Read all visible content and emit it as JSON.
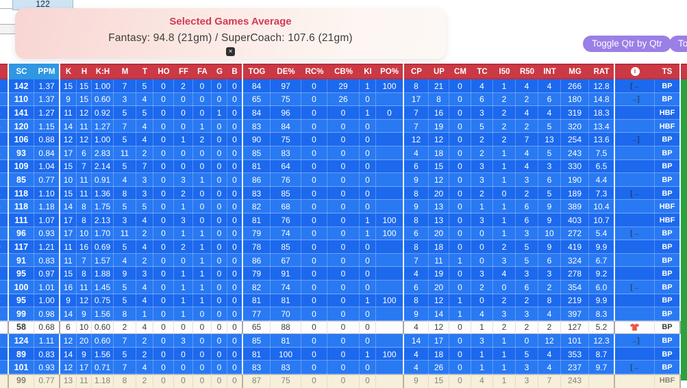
{
  "top": {
    "cell_value": "122",
    "toggle_qtr_label": "Toggle Qtr by Qtr",
    "toggle_second_label": "Togg"
  },
  "tooltip": {
    "title": "Selected Games Average",
    "body": "Fantasy: 94.8 (21gm) / SuperCoach: 107.6 (21gm)",
    "close_label": "×"
  },
  "colors": {
    "header_red": "#cb3944",
    "header_highlight_blue": "#2f97e3",
    "row_blue_dark": "#1c69ee",
    "row_blue_light": "#2979f3",
    "selected_row_white": "#fdfdfd",
    "highlight_row_cream": "#f7efd9",
    "green_strip": "#2aa33c",
    "button_purple": "#9a7fe6",
    "tooltip_title_red": "#d23b56"
  },
  "icons": {
    "sub_off": "[→",
    "sub_on": "→]",
    "info": "i"
  },
  "table": {
    "columns": [
      {
        "key": "edge",
        "label": "",
        "gend": true
      },
      {
        "key": "sc",
        "label": "SC",
        "hl": true
      },
      {
        "key": "ppm",
        "label": "PPM",
        "hl": true,
        "gend": true
      },
      {
        "key": "k",
        "label": "K"
      },
      {
        "key": "h",
        "label": "H"
      },
      {
        "key": "kh",
        "label": "K:H"
      },
      {
        "key": "m",
        "label": "M"
      },
      {
        "key": "t",
        "label": "T"
      },
      {
        "key": "ho",
        "label": "HO"
      },
      {
        "key": "ff",
        "label": "FF"
      },
      {
        "key": "fa",
        "label": "FA"
      },
      {
        "key": "g",
        "label": "G"
      },
      {
        "key": "b",
        "label": "B",
        "gend": true
      },
      {
        "key": "tog",
        "label": "TOG"
      },
      {
        "key": "de",
        "label": "DE%"
      },
      {
        "key": "rc",
        "label": "RC%"
      },
      {
        "key": "cb",
        "label": "CB%"
      },
      {
        "key": "ki",
        "label": "KI"
      },
      {
        "key": "po",
        "label": "PO%",
        "gend": true
      },
      {
        "key": "cp",
        "label": "CP"
      },
      {
        "key": "up",
        "label": "UP"
      },
      {
        "key": "cm",
        "label": "CM"
      },
      {
        "key": "tc",
        "label": "TC"
      },
      {
        "key": "i50",
        "label": "I50"
      },
      {
        "key": "r50",
        "label": "R50"
      },
      {
        "key": "int",
        "label": "INT"
      },
      {
        "key": "mg",
        "label": "MG"
      },
      {
        "key": "rat",
        "label": "RAT",
        "gend": true
      },
      {
        "key": "status",
        "label": "",
        "icon": "info-icon"
      },
      {
        "key": "ts",
        "label": "TS",
        "gend": true
      }
    ],
    "rows": [
      {
        "edge": "",
        "cells": [
          "142",
          "1.37",
          "15",
          "15",
          "1.00",
          "7",
          "5",
          "0",
          "2",
          "0",
          "0",
          "0",
          "84",
          "97",
          "0",
          "29",
          "1",
          "100",
          "8",
          "21",
          "0",
          "4",
          "1",
          "4",
          "4",
          "266",
          "12.8"
        ],
        "icon": "sub-off",
        "ts": "BP",
        "variant": ""
      },
      {
        "edge": "",
        "cells": [
          "110",
          "1.37",
          "9",
          "15",
          "0.60",
          "3",
          "4",
          "0",
          "0",
          "0",
          "0",
          "0",
          "65",
          "75",
          "0",
          "26",
          "0",
          "",
          "17",
          "8",
          "0",
          "6",
          "2",
          "2",
          "6",
          "180",
          "14.8"
        ],
        "icon": "sub-on",
        "ts": "BP",
        "variant": ""
      },
      {
        "edge": "3",
        "cells": [
          "141",
          "1.27",
          "11",
          "12",
          "0.92",
          "5",
          "5",
          "0",
          "0",
          "0",
          "1",
          "0",
          "84",
          "96",
          "0",
          "0",
          "1",
          "0",
          "7",
          "16",
          "0",
          "3",
          "2",
          "4",
          "4",
          "319",
          "18.3"
        ],
        "icon": "",
        "ts": "HBF",
        "variant": ""
      },
      {
        "edge": "4",
        "cells": [
          "120",
          "1.15",
          "14",
          "11",
          "1.27",
          "7",
          "4",
          "0",
          "0",
          "1",
          "0",
          "0",
          "83",
          "84",
          "0",
          "0",
          "0",
          "",
          "7",
          "19",
          "0",
          "5",
          "2",
          "2",
          "5",
          "320",
          "13.4"
        ],
        "icon": "",
        "ts": "HBF",
        "variant": ""
      },
      {
        "edge": "",
        "cells": [
          "106",
          "0.88",
          "12",
          "12",
          "1.00",
          "5",
          "4",
          "0",
          "1",
          "2",
          "0",
          "0",
          "90",
          "75",
          "0",
          "0",
          "0",
          "",
          "12",
          "12",
          "0",
          "2",
          "2",
          "7",
          "13",
          "254",
          "13.6"
        ],
        "icon": "sub-on",
        "ts": "BP",
        "variant": ""
      },
      {
        "edge": "4",
        "cells": [
          "93",
          "0.84",
          "17",
          "6",
          "2.83",
          "11",
          "2",
          "0",
          "0",
          "0",
          "0",
          "0",
          "85",
          "83",
          "0",
          "0",
          "0",
          "",
          "4",
          "18",
          "0",
          "2",
          "1",
          "4",
          "5",
          "243",
          "7.5"
        ],
        "icon": "",
        "ts": "BP",
        "variant": ""
      },
      {
        "edge": "7",
        "cells": [
          "109",
          "1.04",
          "15",
          "7",
          "2.14",
          "5",
          "7",
          "0",
          "0",
          "0",
          "0",
          "0",
          "81",
          "64",
          "0",
          "0",
          "0",
          "",
          "6",
          "15",
          "0",
          "3",
          "1",
          "4",
          "3",
          "330",
          "6.5"
        ],
        "icon": "",
        "ts": "BP",
        "variant": ""
      },
      {
        "edge": "9",
        "cells": [
          "85",
          "0.77",
          "10",
          "11",
          "0.91",
          "4",
          "3",
          "0",
          "3",
          "1",
          "0",
          "0",
          "86",
          "76",
          "0",
          "0",
          "0",
          "",
          "9",
          "12",
          "0",
          "3",
          "1",
          "3",
          "6",
          "190",
          "4.4"
        ],
        "icon": "",
        "ts": "BP",
        "variant": ""
      },
      {
        "edge": "3",
        "cells": [
          "118",
          "1.10",
          "15",
          "11",
          "1.36",
          "8",
          "3",
          "0",
          "2",
          "0",
          "0",
          "0",
          "83",
          "85",
          "0",
          "0",
          "0",
          "",
          "8",
          "20",
          "0",
          "2",
          "0",
          "2",
          "5",
          "189",
          "7.3"
        ],
        "icon": "sub-off",
        "ts": "BP",
        "variant": ""
      },
      {
        "edge": "4",
        "cells": [
          "118",
          "1.18",
          "14",
          "8",
          "1.75",
          "5",
          "5",
          "0",
          "1",
          "0",
          "0",
          "0",
          "82",
          "68",
          "0",
          "0",
          "0",
          "",
          "9",
          "13",
          "0",
          "1",
          "1",
          "6",
          "9",
          "389",
          "10.4"
        ],
        "icon": "",
        "ts": "HBF",
        "variant": ""
      },
      {
        "edge": "2",
        "cells": [
          "111",
          "1.07",
          "17",
          "8",
          "2.13",
          "3",
          "4",
          "0",
          "3",
          "0",
          "0",
          "0",
          "81",
          "76",
          "0",
          "0",
          "1",
          "100",
          "8",
          "13",
          "0",
          "3",
          "1",
          "6",
          "9",
          "403",
          "10.7"
        ],
        "icon": "",
        "ts": "HBF",
        "variant": ""
      },
      {
        "edge": "",
        "cells": [
          "96",
          "0.93",
          "17",
          "10",
          "1.70",
          "11",
          "2",
          "0",
          "1",
          "1",
          "0",
          "0",
          "79",
          "74",
          "0",
          "0",
          "1",
          "100",
          "6",
          "20",
          "0",
          "0",
          "1",
          "3",
          "10",
          "272",
          "5.4"
        ],
        "icon": "sub-off",
        "ts": "BP",
        "variant": ""
      },
      {
        "edge": "0",
        "cells": [
          "117",
          "1.21",
          "11",
          "16",
          "0.69",
          "5",
          "4",
          "0",
          "2",
          "1",
          "0",
          "0",
          "78",
          "85",
          "0",
          "0",
          "0",
          "",
          "8",
          "18",
          "0",
          "0",
          "2",
          "5",
          "9",
          "419",
          "9.9"
        ],
        "icon": "",
        "ts": "BP",
        "variant": ""
      },
      {
        "edge": "3",
        "cells": [
          "91",
          "0.83",
          "11",
          "7",
          "1.57",
          "4",
          "2",
          "0",
          "0",
          "1",
          "0",
          "0",
          "86",
          "67",
          "0",
          "0",
          "0",
          "",
          "7",
          "11",
          "1",
          "0",
          "3",
          "5",
          "6",
          "324",
          "6.7"
        ],
        "icon": "",
        "ts": "BP",
        "variant": ""
      },
      {
        "edge": "",
        "cells": [
          "95",
          "0.97",
          "15",
          "8",
          "1.88",
          "9",
          "3",
          "0",
          "1",
          "1",
          "0",
          "0",
          "79",
          "91",
          "0",
          "0",
          "0",
          "",
          "4",
          "19",
          "0",
          "3",
          "4",
          "3",
          "3",
          "278",
          "9.2"
        ],
        "icon": "",
        "ts": "BP",
        "variant": ""
      },
      {
        "edge": "",
        "cells": [
          "100",
          "1.01",
          "16",
          "11",
          "1.45",
          "5",
          "4",
          "0",
          "1",
          "1",
          "0",
          "0",
          "82",
          "74",
          "0",
          "0",
          "0",
          "",
          "6",
          "20",
          "0",
          "2",
          "0",
          "6",
          "2",
          "354",
          "6.0"
        ],
        "icon": "sub-off",
        "ts": "BP",
        "variant": ""
      },
      {
        "edge": "4",
        "cells": [
          "95",
          "1.00",
          "9",
          "12",
          "0.75",
          "5",
          "4",
          "0",
          "1",
          "1",
          "0",
          "0",
          "81",
          "81",
          "0",
          "0",
          "1",
          "100",
          "8",
          "12",
          "1",
          "0",
          "2",
          "2",
          "8",
          "219",
          "9.9"
        ],
        "icon": "",
        "ts": "BP",
        "variant": ""
      },
      {
        "edge": "5",
        "cells": [
          "99",
          "0.98",
          "14",
          "9",
          "1.56",
          "8",
          "1",
          "0",
          "1",
          "0",
          "0",
          "0",
          "77",
          "70",
          "0",
          "0",
          "0",
          "",
          "9",
          "14",
          "1",
          "4",
          "3",
          "3",
          "4",
          "397",
          "8.3"
        ],
        "icon": "",
        "ts": "BP",
        "variant": ""
      },
      {
        "edge": "",
        "cells": [
          "58",
          "0.68",
          "6",
          "10",
          "0.60",
          "2",
          "4",
          "0",
          "0",
          "0",
          "0",
          "0",
          "65",
          "88",
          "0",
          "0",
          "0",
          "",
          "4",
          "12",
          "0",
          "1",
          "2",
          "2",
          "2",
          "127",
          "5.2"
        ],
        "icon": "jersey",
        "ts": "BP",
        "variant": "white"
      },
      {
        "edge": "7",
        "cells": [
          "124",
          "1.11",
          "12",
          "20",
          "0.60",
          "7",
          "2",
          "0",
          "3",
          "0",
          "0",
          "0",
          "85",
          "81",
          "0",
          "0",
          "0",
          "",
          "14",
          "17",
          "0",
          "3",
          "1",
          "0",
          "12",
          "101",
          "12.3"
        ],
        "icon": "sub-on",
        "ts": "BP",
        "variant": ""
      },
      {
        "edge": "7",
        "cells": [
          "89",
          "0.83",
          "14",
          "9",
          "1.56",
          "5",
          "2",
          "0",
          "0",
          "0",
          "0",
          "0",
          "81",
          "100",
          "0",
          "0",
          "1",
          "100",
          "4",
          "18",
          "0",
          "1",
          "1",
          "5",
          "4",
          "353",
          "8.7"
        ],
        "icon": "",
        "ts": "BP",
        "variant": ""
      },
      {
        "edge": "3",
        "cells": [
          "101",
          "0.93",
          "12",
          "17",
          "0.71",
          "7",
          "4",
          "0",
          "0",
          "0",
          "0",
          "0",
          "83",
          "83",
          "0",
          "0",
          "0",
          "",
          "4",
          "26",
          "0",
          "1",
          "1",
          "3",
          "4",
          "237",
          "9.7"
        ],
        "icon": "sub-off",
        "ts": "BP",
        "variant": ""
      },
      {
        "edge": "",
        "cells": [
          "99",
          "0.77",
          "13",
          "11",
          "1.18",
          "8",
          "2",
          "0",
          "0",
          "0",
          "0",
          "0",
          "87",
          "75",
          "0",
          "0",
          "0",
          "",
          "9",
          "15",
          "0",
          "4",
          "1",
          "3",
          "7",
          "243",
          ""
        ],
        "icon": "",
        "ts": "HBF",
        "variant": "cream"
      }
    ]
  }
}
